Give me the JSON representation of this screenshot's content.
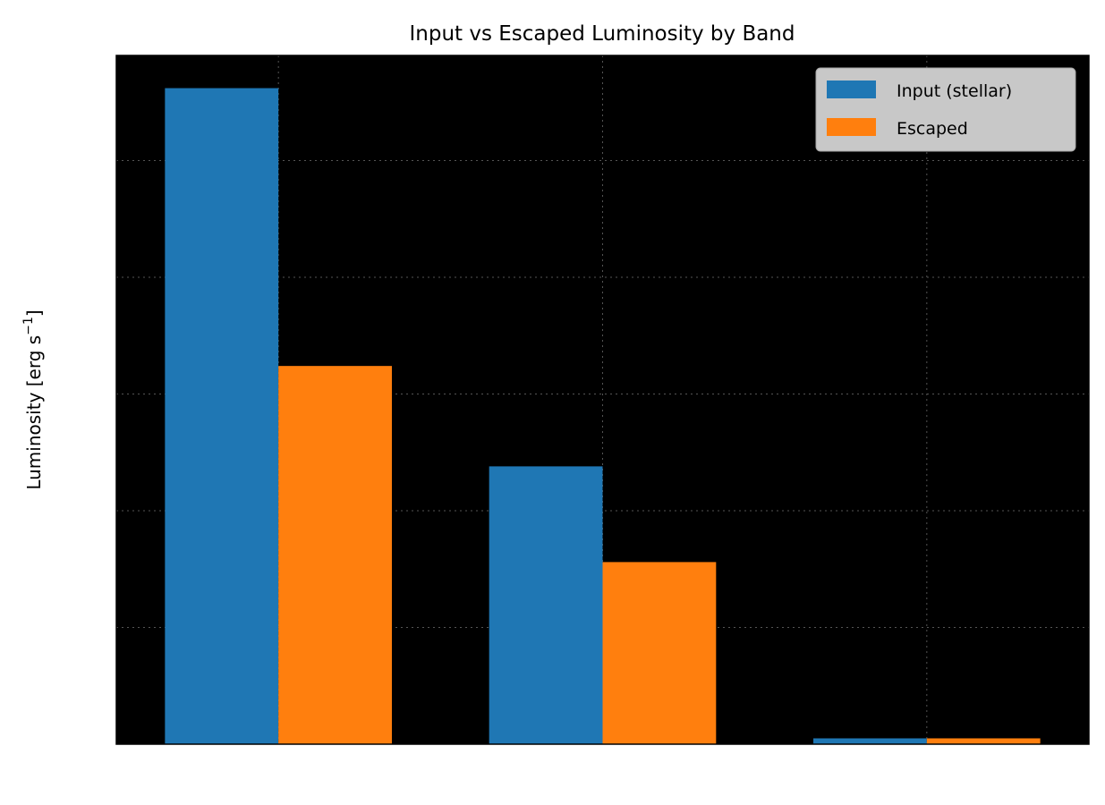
{
  "chart_data": {
    "type": "bar",
    "title": "Input vs Escaped Luminosity by Band",
    "xlabel": "",
    "ylabel": "Luminosity [erg s",
    "ylabel_exp": "−1",
    "ylabel_close": "]",
    "categories": [
      "",
      "",
      ""
    ],
    "series": [
      {
        "name": "Input (stellar)",
        "color": "#1f77b4",
        "values": [
          5.62,
          2.38,
          0.05
        ]
      },
      {
        "name": "Escaped",
        "color": "#ff7f0e",
        "values": [
          3.24,
          1.56,
          0.05
        ]
      }
    ],
    "ylim": [
      0,
      5.9
    ],
    "yticks": [
      1,
      2,
      3,
      4,
      5
    ],
    "grid": true,
    "legend_position": "top-right",
    "plot_background": "#000000"
  }
}
